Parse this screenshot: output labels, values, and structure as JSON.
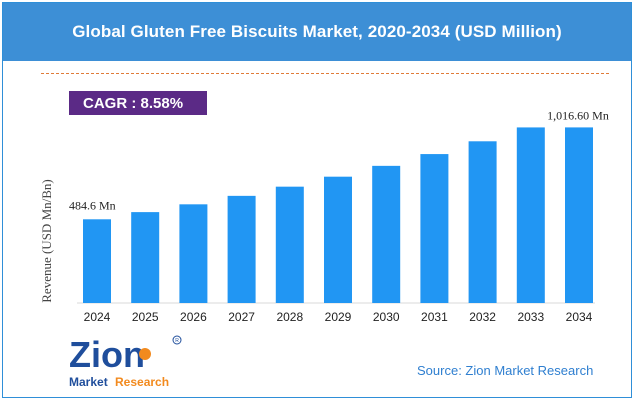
{
  "title": "Global Gluten Free Biscuits Market, 2020-2034 (USD Million)",
  "cagr_label": "CAGR : 8.58%",
  "source": "Source: Zion Market Research",
  "logo": {
    "word": "Zion",
    "tagline_1": "Market",
    "tagline_2": "Research",
    "registered": "R"
  },
  "colors": {
    "title_bar": "#3d8fd6",
    "bar": "#2196f3",
    "cagr_box": "#5b2a86",
    "divider": "#e07b39",
    "logo_blue": "#1f4e9c",
    "logo_orange": "#f28a1e"
  },
  "chart_data": {
    "type": "bar",
    "title": "Global Gluten Free Biscuits Market, 2020-2034 (USD Million)",
    "xlabel": "",
    "ylabel": "Revenue (USD Mn/Bn)",
    "categories": [
      "2024",
      "2025",
      "2026",
      "2027",
      "2028",
      "2029",
      "2030",
      "2031",
      "2032",
      "2033",
      "2034"
    ],
    "values": [
      484.6,
      526.2,
      571.3,
      620.3,
      673.5,
      731.3,
      794.0,
      862.2,
      936.2,
      1016.5,
      1016.6
    ],
    "data_labels": [
      {
        "index": 0,
        "text": "484.6 Mn"
      },
      {
        "index": 10,
        "text": "1,016.60 Mn"
      }
    ],
    "ylim": [
      0,
      1100
    ],
    "grid": false,
    "legend": "none"
  }
}
